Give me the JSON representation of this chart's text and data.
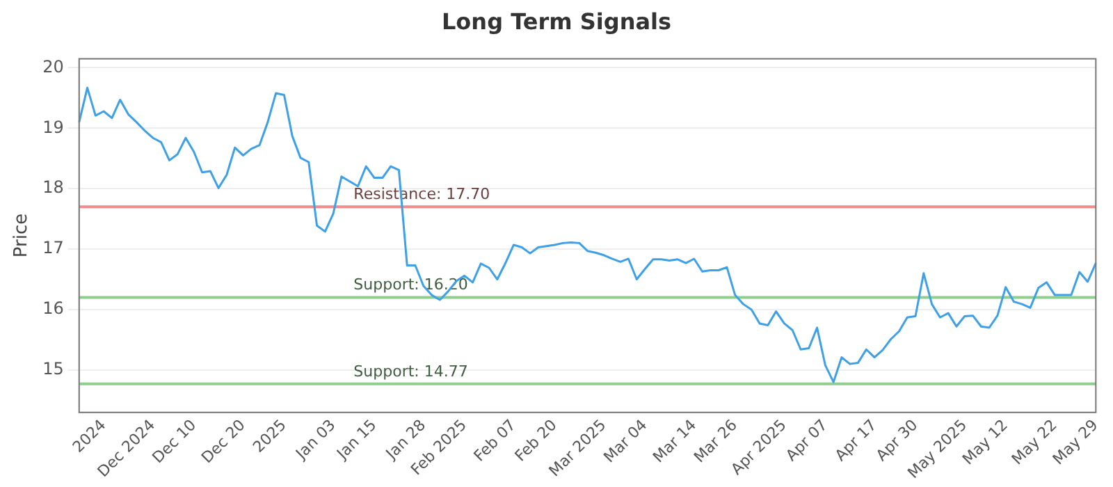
{
  "chart_data": {
    "type": "line",
    "title": "Long Term Signals",
    "ylabel": "Price",
    "categories": [
      null,
      null,
      null,
      "2024",
      null,
      null,
      null,
      null,
      null,
      "Dec 2024",
      null,
      null,
      null,
      null,
      "Dec 10",
      null,
      null,
      null,
      null,
      null,
      "Dec 20",
      null,
      null,
      null,
      null,
      "2025",
      null,
      null,
      null,
      null,
      null,
      "Jan 03",
      null,
      null,
      null,
      null,
      "Jan 15",
      null,
      null,
      null,
      null,
      null,
      "Jan 28",
      null,
      null,
      null,
      null,
      "Feb 2025",
      null,
      null,
      null,
      null,
      null,
      "Feb 07",
      null,
      null,
      null,
      null,
      "Feb 20",
      null,
      null,
      null,
      null,
      null,
      "Mar 2025",
      null,
      null,
      null,
      null,
      "Mar 04",
      null,
      null,
      null,
      null,
      null,
      "Mar 14",
      null,
      null,
      null,
      null,
      "Mar 26",
      null,
      null,
      null,
      null,
      null,
      "Apr 2025",
      null,
      null,
      null,
      null,
      "Apr 07",
      null,
      null,
      null,
      null,
      null,
      "Apr 17",
      null,
      null,
      null,
      null,
      "Apr 30",
      null,
      null,
      null,
      null,
      null,
      "May 2025",
      null,
      null,
      null,
      null,
      "May 12",
      null,
      null,
      null,
      null,
      null,
      "May 22",
      null,
      null,
      null,
      null,
      "May 29"
    ],
    "series": [
      {
        "color": "#3ea0e8",
        "values": [
          19.1,
          19.67,
          19.21,
          19.28,
          19.17,
          19.47,
          19.23,
          19.1,
          18.96,
          18.84,
          18.77,
          18.47,
          18.57,
          18.84,
          18.61,
          18.27,
          18.29,
          18.01,
          18.23,
          18.68,
          18.55,
          18.66,
          18.72,
          19.1,
          19.58,
          19.55,
          18.87,
          18.51,
          18.44,
          17.39,
          17.29,
          17.59,
          18.2,
          18.12,
          18.04,
          18.37,
          18.18,
          18.18,
          18.37,
          18.31,
          16.73,
          16.73,
          16.39,
          16.24,
          16.16,
          16.3,
          16.47,
          16.56,
          16.45,
          16.76,
          16.69,
          16.5,
          16.77,
          17.07,
          17.03,
          16.93,
          17.03,
          17.05,
          17.07,
          17.1,
          17.11,
          17.1,
          16.97,
          16.94,
          16.9,
          16.84,
          16.79,
          16.84,
          16.5,
          16.67,
          16.83,
          16.83,
          16.81,
          16.83,
          16.77,
          16.84,
          16.63,
          16.65,
          16.65,
          16.7,
          16.24,
          16.09,
          16.0,
          15.77,
          15.74,
          15.97,
          15.77,
          15.66,
          15.34,
          15.36,
          15.7,
          15.08,
          14.8,
          15.21,
          15.1,
          15.12,
          15.34,
          15.21,
          15.33,
          15.51,
          15.64,
          15.87,
          15.89,
          16.6,
          16.09,
          15.87,
          15.94,
          15.72,
          15.89,
          15.9,
          15.72,
          15.7,
          15.9,
          16.37,
          16.13,
          16.09,
          16.03,
          16.36,
          16.45,
          16.24,
          16.24,
          16.24,
          16.62,
          16.46,
          16.77
        ]
      }
    ],
    "ylim": [
      14.3,
      20.15
    ],
    "yticks": [
      15,
      16,
      17,
      18,
      19,
      20
    ],
    "grid": "y",
    "marker": "none",
    "line_style": "solid",
    "legend": false,
    "ref_lines": [
      {
        "axis": "y",
        "value": 17.7,
        "label": "Resistance: 17.70",
        "color": "#f08c8c"
      },
      {
        "axis": "y",
        "value": 16.2,
        "label": "Support: 16.20",
        "color": "#8fce8f"
      },
      {
        "axis": "y",
        "value": 14.77,
        "label": "Support: 14.77",
        "color": "#8fce8f"
      }
    ]
  }
}
